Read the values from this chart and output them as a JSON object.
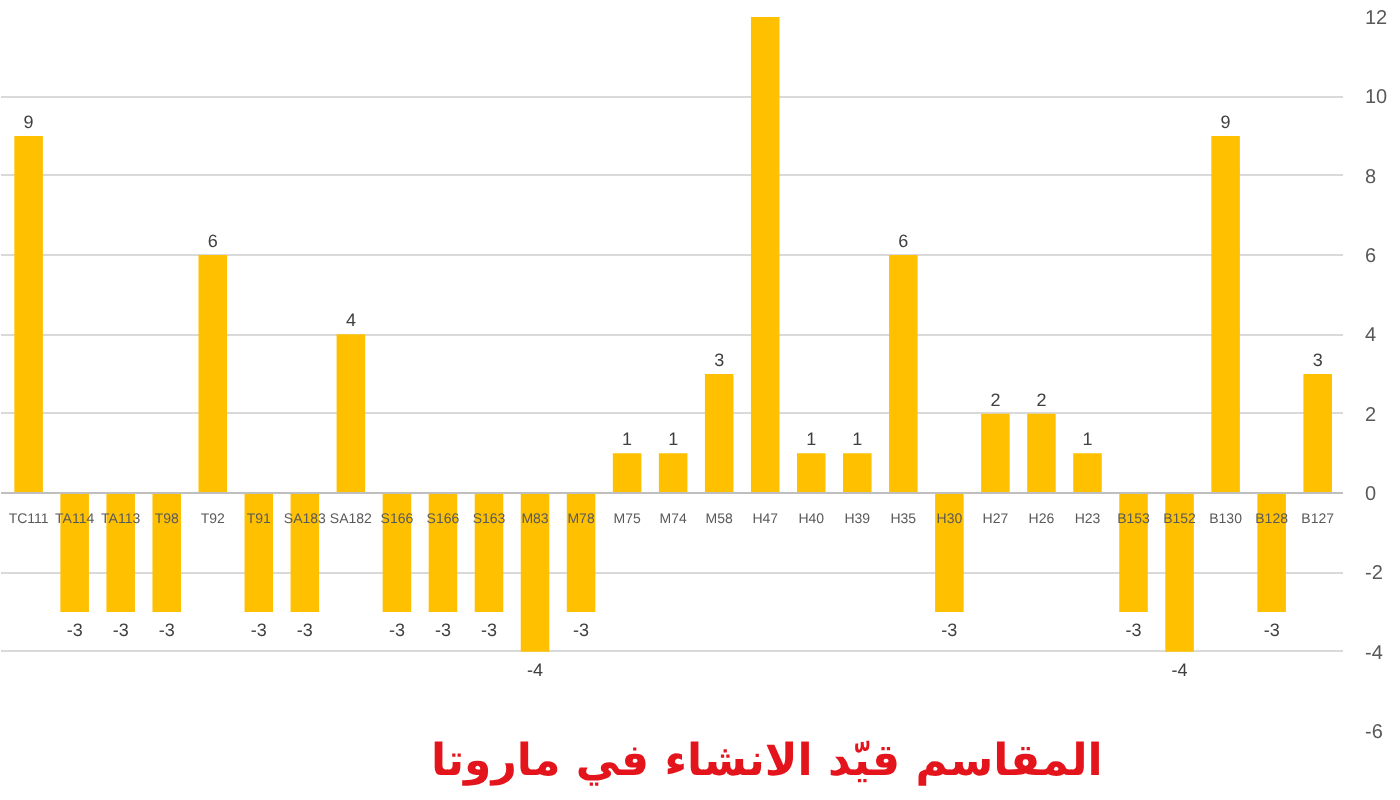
{
  "chart_data": {
    "type": "bar",
    "title": "المقاسم قيّد الانشاء في ماروتا",
    "categories": [
      "TC111",
      "TA114",
      "TA113",
      "T98",
      "T92",
      "T91",
      "SA183",
      "SA182",
      "S166",
      "S166",
      "S163",
      "M83",
      "M78",
      "M75",
      "M74",
      "M58",
      "H47",
      "H40",
      "H39",
      "H35",
      "H30",
      "H27",
      "H26",
      "H23",
      "B153",
      "B152",
      "B130",
      "B128",
      "B127"
    ],
    "values": [
      9,
      -3,
      -3,
      -3,
      6,
      -3,
      -3,
      4,
      -3,
      -3,
      -3,
      -4,
      -3,
      1,
      1,
      3,
      12,
      1,
      1,
      6,
      -3,
      2,
      2,
      1,
      -3,
      -4,
      9,
      -3,
      3
    ],
    "value_labels": [
      "9",
      "-3",
      "-3",
      "-3",
      "6",
      "-3",
      "-3",
      "4",
      "-3",
      "-3",
      "-3",
      "-4",
      "-3",
      "1",
      "1",
      "3",
      null,
      "1",
      "1",
      "6",
      "-3",
      "2",
      "2",
      "1",
      "-3",
      "-4",
      "9",
      "-3",
      "3"
    ],
    "color": "#ffc000",
    "ylim": [
      -6,
      12
    ],
    "yticks": [
      -6,
      -4,
      -2,
      0,
      2,
      4,
      6,
      8,
      10,
      12
    ],
    "grid": "y"
  }
}
